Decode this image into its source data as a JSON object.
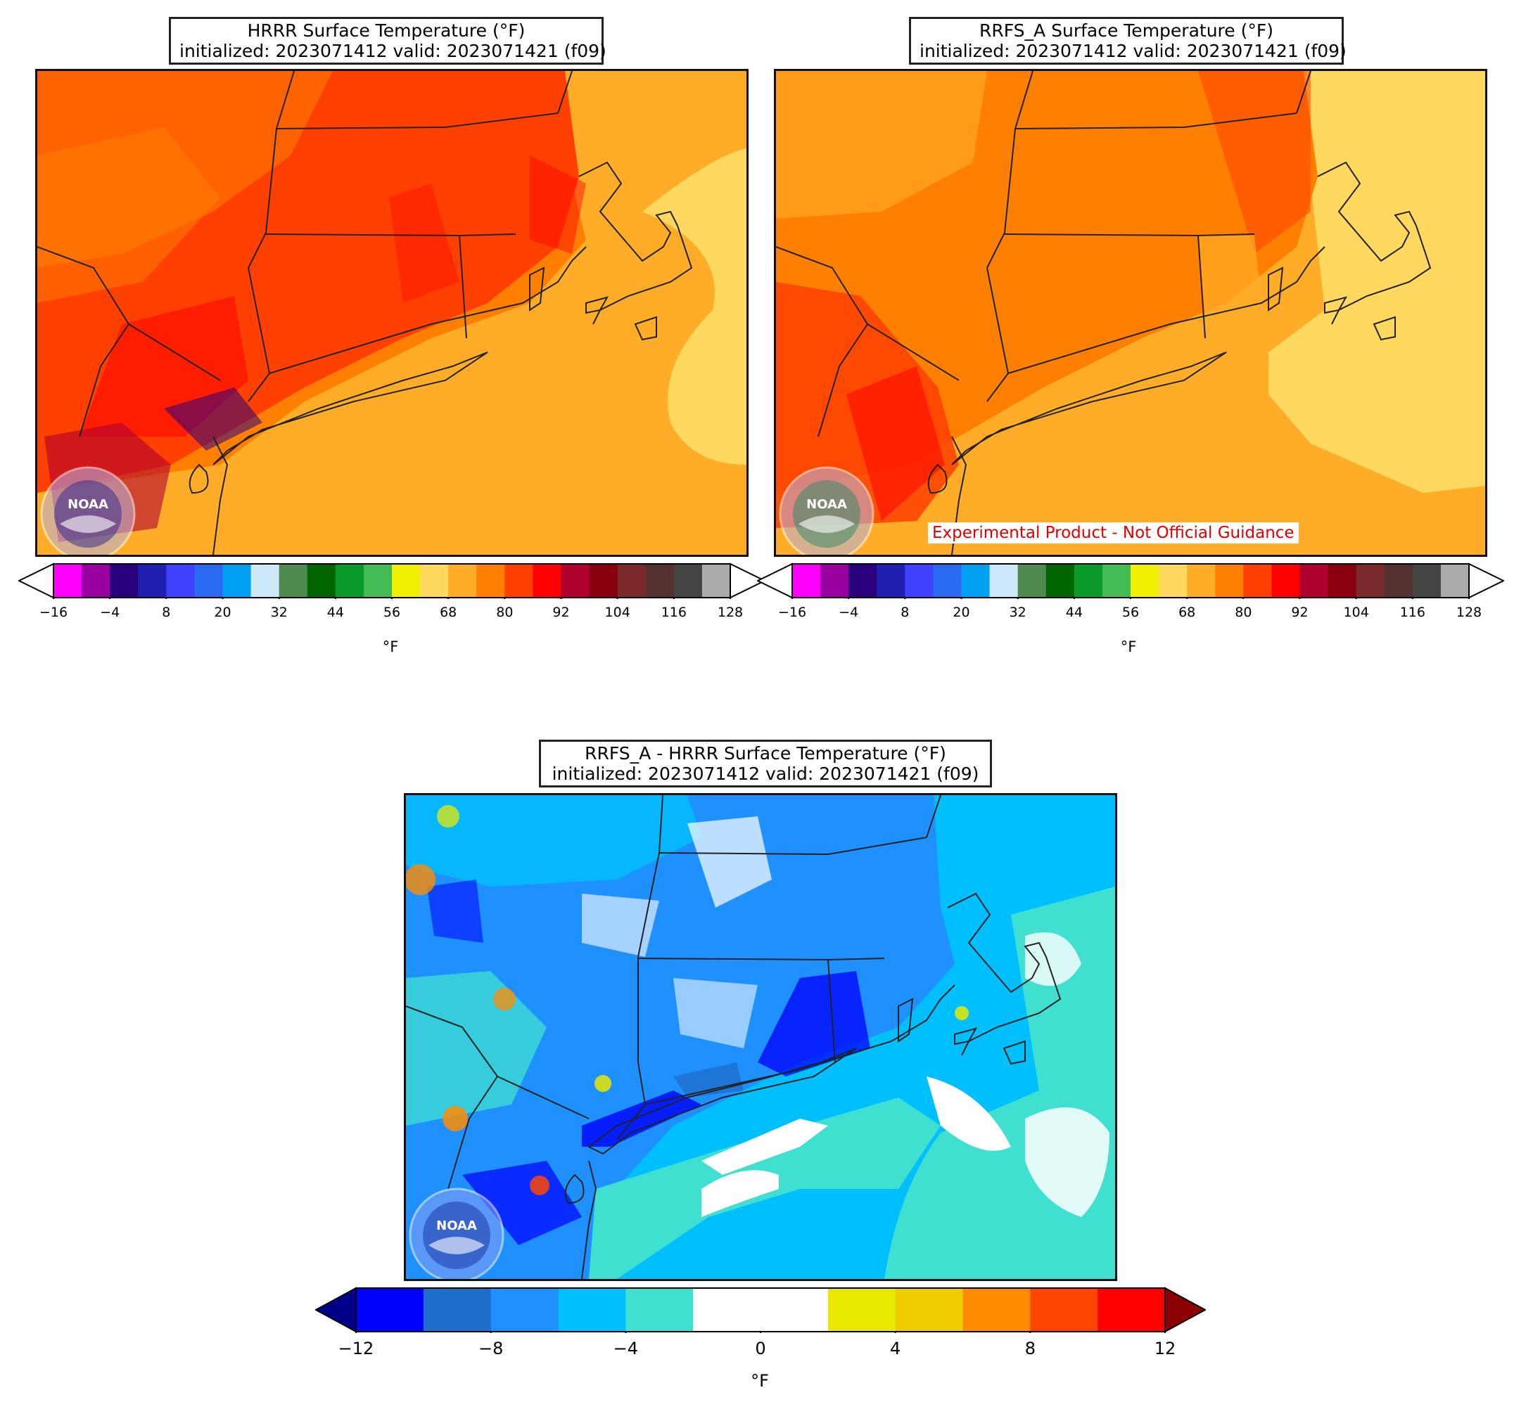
{
  "panels": {
    "hrrr": {
      "title_line1": "HRRR Surface Temperature (°F)",
      "title_line2": "initialized: 2023071412 valid: 2023071421 (f09)"
    },
    "rrfs": {
      "title_line1": "RRFS_A Surface Temperature (°F)",
      "title_line2": "initialized: 2023071412 valid: 2023071421 (f09)",
      "disclaimer": "Experimental Product - Not Official Guidance"
    },
    "diff": {
      "title_line1": "RRFS_A - HRRR Surface Temperature (°F)",
      "title_line2": "initialized: 2023071412 valid: 2023071421 (f09)"
    }
  },
  "temp_colorbar": {
    "unit": "°F",
    "ticks": [
      "−16",
      "−4",
      "8",
      "20",
      "32",
      "44",
      "56",
      "68",
      "80",
      "92",
      "104",
      "116",
      "128"
    ],
    "colors": [
      "#ff00ff",
      "#9900a0",
      "#2b007e",
      "#2020b0",
      "#4040ff",
      "#2a6af0",
      "#00a0f0",
      "#cde8f8",
      "#4f8a4f",
      "#006400",
      "#0a9a2a",
      "#44bb55",
      "#f0f000",
      "#ffd860",
      "#ffad28",
      "#ff8000",
      "#ff4000",
      "#ff0000",
      "#b00030",
      "#880010",
      "#7a2a2a",
      "#553030",
      "#444444",
      "#aaaaaa"
    ],
    "under_color": "#ffffff",
    "over_color": "#ffffff"
  },
  "diff_colorbar": {
    "unit": "°F",
    "ticks": [
      "−12",
      "−8",
      "−4",
      "0",
      "4",
      "8",
      "12"
    ],
    "colors": [
      "#0000ff",
      "#1e6ecc",
      "#1e90ff",
      "#00bfff",
      "#40e0d0",
      "#ffffff",
      "#ffffff",
      "#e8e800",
      "#eecc00",
      "#ff8c00",
      "#ff4500",
      "#ff0000"
    ],
    "under_color": "#00008b",
    "over_color": "#8b0000"
  },
  "logo_text": "NOAA",
  "icons": {
    "logo": "noaa-emblem-icon"
  }
}
